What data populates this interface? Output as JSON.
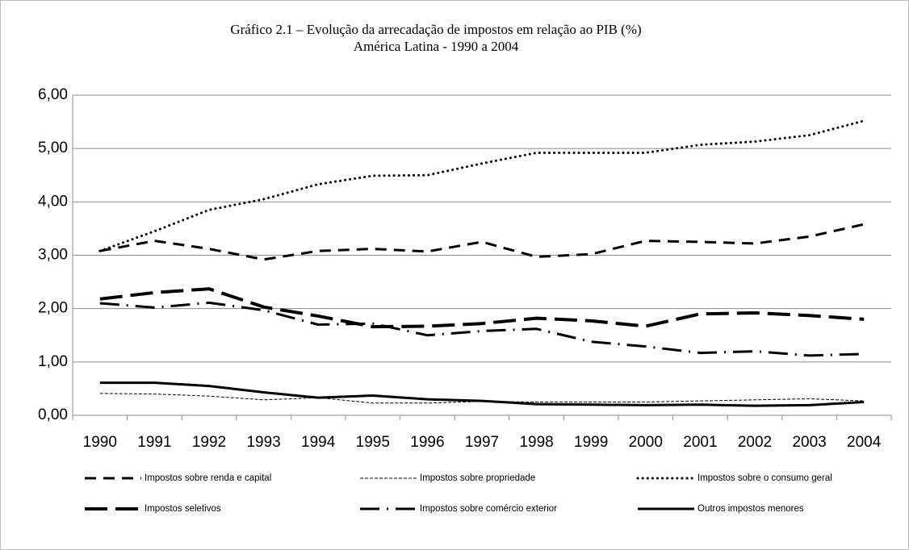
{
  "chart_data": {
    "type": "line",
    "title": "Gráfico 2.1 – Evolução da arrecadação de impostos em relação ao PIB (%)",
    "subtitle": "América Latina - 1990 a 2004",
    "categories": [
      "1990",
      "1991",
      "1992",
      "1993",
      "1994",
      "1995",
      "1996",
      "1997",
      "1998",
      "1999",
      "2000",
      "2001",
      "2002",
      "2003",
      "2004"
    ],
    "series": [
      {
        "name": "Impostos sobre renda e capital",
        "color": "#000000",
        "line_style": "dashed",
        "values": [
          3.08,
          3.27,
          3.12,
          2.92,
          3.08,
          3.12,
          3.07,
          3.25,
          2.97,
          3.02,
          3.27,
          3.25,
          3.22,
          3.35,
          3.58
        ]
      },
      {
        "name": "Impostos sobre propriedade",
        "color": "#000000",
        "line_style": "thin-dashed",
        "values": [
          0.41,
          0.4,
          0.36,
          0.29,
          0.33,
          0.23,
          0.23,
          0.26,
          0.25,
          0.25,
          0.25,
          0.27,
          0.29,
          0.31,
          0.27
        ]
      },
      {
        "name": "Impostos sobre o consumo geral",
        "color": "#000000",
        "line_style": "dotted",
        "values": [
          3.08,
          3.45,
          3.85,
          4.05,
          4.33,
          4.49,
          4.5,
          4.72,
          4.92,
          4.92,
          4.92,
          5.07,
          5.13,
          5.25,
          5.52
        ]
      },
      {
        "name": "Impostos seletivos",
        "color": "#000000",
        "line_style": "long-dashed",
        "values": [
          2.18,
          2.3,
          2.37,
          2.03,
          1.86,
          1.66,
          1.67,
          1.72,
          1.82,
          1.77,
          1.67,
          1.9,
          1.92,
          1.87,
          1.8
        ]
      },
      {
        "name": "Impostos sobre comércio exterior",
        "color": "#000000",
        "line_style": "dash-dot",
        "values": [
          2.1,
          2.02,
          2.11,
          1.97,
          1.7,
          1.72,
          1.5,
          1.58,
          1.62,
          1.38,
          1.29,
          1.17,
          1.2,
          1.12,
          1.15
        ]
      },
      {
        "name": "Outros impostos menores",
        "color": "#000000",
        "line_style": "solid",
        "values": [
          0.61,
          0.61,
          0.55,
          0.43,
          0.33,
          0.37,
          0.3,
          0.27,
          0.21,
          0.2,
          0.19,
          0.2,
          0.18,
          0.19,
          0.25
        ]
      }
    ],
    "ylim": [
      0,
      6
    ],
    "yticks": [
      {
        "value": 0,
        "label": "0,00"
      },
      {
        "value": 1,
        "label": "1,00"
      },
      {
        "value": 2,
        "label": "2,00"
      },
      {
        "value": 3,
        "label": "3,00"
      },
      {
        "value": 4,
        "label": "4,00"
      },
      {
        "value": 5,
        "label": "5,00"
      },
      {
        "value": 6,
        "label": "6,00"
      }
    ],
    "grid": true,
    "legend": "bottom"
  }
}
